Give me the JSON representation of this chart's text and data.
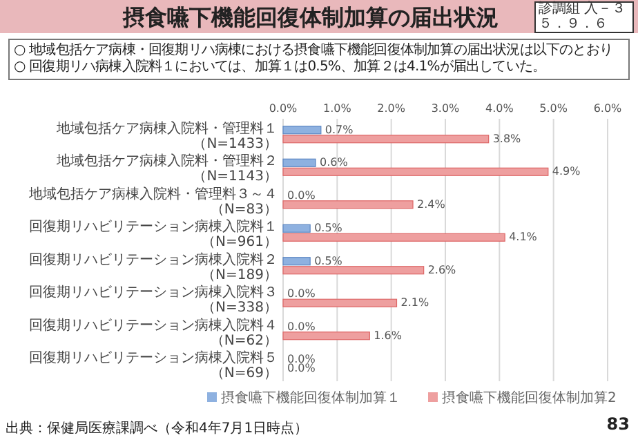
{
  "chart_data": {
    "type": "bar",
    "orientation": "horizontal",
    "title": "摂食嚥下機能回復体制加算の届出状況",
    "annotations": [
      "○ 地域包括ケア病棟・回復期リハ病棟における摂食嚥下機能回復体制加算の届出状況は以下のとおり",
      "○ 回復期リハ病棟入院料１においては、加算１は0.5%、加算２は4.1%が届出していた。",
      "診調組 入－３",
      "５．９．６",
      "出典：保健局医療課調べ（令和4年7月1日時点）",
      "83"
    ],
    "categories": [
      "地域包括ケア病棟入院料・管理料１（N=1433）",
      "地域包括ケア病棟入院料・管理料２（N=1143）",
      "地域包括ケア病棟入院料・管理料３～４（N=83）",
      "回復期リハビリテーション病棟入院料１（N=961）",
      "回復期リハビリテーション病棟入院料２（N=189）",
      "回復期リハビリテーション病棟入院料３（N=338）",
      "回復期リハビリテーション病棟入院料４（N=62）",
      "回復期リハビリテーション病棟入院料５（N=69）"
    ],
    "series": [
      {
        "name": "摂食嚥下機能回復体制加算１",
        "color": "#8eb1e0",
        "values": [
          0.7,
          0.6,
          0,
          0.5,
          0.5,
          0,
          0,
          0
        ],
        "value_labels": [
          "0.7%",
          "0.6%",
          "0.0%",
          "0.5%",
          "0.5%",
          "0.0%",
          "0.0%",
          "0.0%"
        ]
      },
      {
        "name": "摂食嚥下機能回復体制加算2",
        "color": "#ee9f9f",
        "values": [
          3.8,
          4.9,
          2.4,
          4.1,
          2.6,
          2.1,
          1.6,
          0
        ],
        "value_labels": [
          "3.8%",
          "4.9%",
          "2.4%",
          "4.1%",
          "2.6%",
          "2.1%",
          "1.6%",
          "0.0%"
        ]
      }
    ],
    "xlim": [
      0,
      6
    ],
    "xticks": [
      {
        "value": 0,
        "label": "0.0%"
      },
      {
        "value": 1,
        "label": "1.0%"
      },
      {
        "value": 2,
        "label": "2.0%"
      },
      {
        "value": 3,
        "label": "3.0%"
      },
      {
        "value": 4,
        "label": "4.0%"
      },
      {
        "value": 5,
        "label": "5.0%"
      },
      {
        "value": 6,
        "label": "6.0%"
      }
    ],
    "grid": "x",
    "legend": "bottom"
  }
}
